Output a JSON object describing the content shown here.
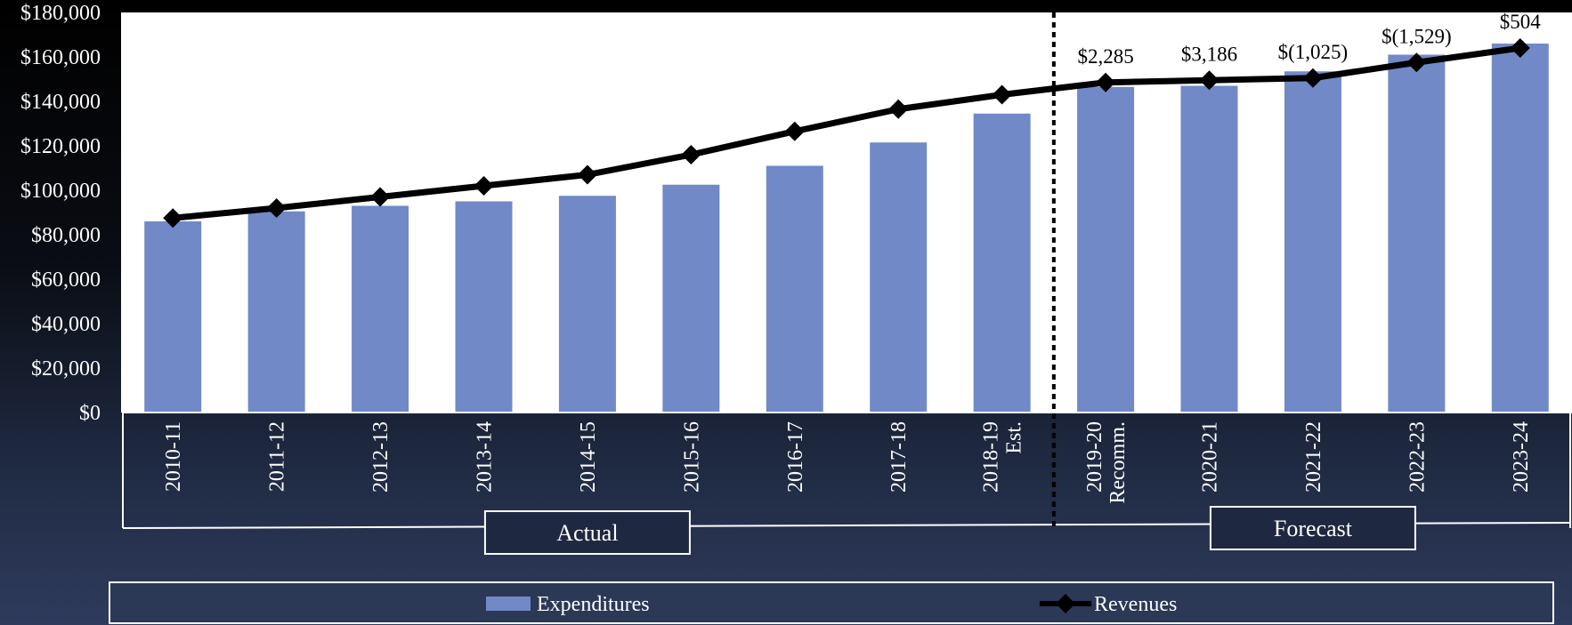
{
  "chart_data": {
    "type": "bar",
    "categories": [
      "2010-11",
      "2011-12",
      "2012-13",
      "2013-14",
      "2014-15",
      "2015-16",
      "2016-17",
      "2017-18",
      "2018-19 Est.",
      "2019-20 Recomm.",
      "2020-21",
      "2021-22",
      "2022-23",
      "2023-24"
    ],
    "category_lines": [
      [
        "2010-11"
      ],
      [
        "2011-12"
      ],
      [
        "2012-13"
      ],
      [
        "2013-14"
      ],
      [
        "2014-15"
      ],
      [
        "2015-16"
      ],
      [
        "2016-17"
      ],
      [
        "2017-18"
      ],
      [
        "2018-19",
        "Est."
      ],
      [
        "2019-20",
        "Recomm."
      ],
      [
        "2020-21"
      ],
      [
        "2021-22"
      ],
      [
        "2022-23"
      ],
      [
        "2023-24"
      ]
    ],
    "series": [
      {
        "name": "Expenditures",
        "kind": "bar",
        "values": [
          86000,
          90500,
          93000,
          95000,
          97500,
          102500,
          111000,
          121500,
          134500,
          146500,
          147000,
          153500,
          161000,
          166000
        ]
      },
      {
        "name": "Revenues",
        "kind": "line",
        "values": [
          87500,
          92000,
          97000,
          102000,
          107000,
          116000,
          126500,
          136500,
          143000,
          148500,
          149500,
          150500,
          157500,
          164000
        ]
      }
    ],
    "data_labels": [
      {
        "index": 9,
        "text": "$2,285"
      },
      {
        "index": 10,
        "text": "$3,186"
      },
      {
        "index": 11,
        "text": "$(1,025)"
      },
      {
        "index": 12,
        "text": "$(1,529)"
      },
      {
        "index": 13,
        "text": "$504"
      }
    ],
    "y_ticks": [
      "$0",
      "$20,000",
      "$40,000",
      "$60,000",
      "$80,000",
      "$100,000",
      "$120,000",
      "$140,000",
      "$160,000",
      "$180,000"
    ],
    "ylim": [
      0,
      180000
    ],
    "groups": [
      {
        "label": "Actual",
        "from": 0,
        "to": 8
      },
      {
        "label": "Forecast",
        "from": 9,
        "to": 13
      }
    ],
    "title": "",
    "xlabel": "",
    "ylabel": "",
    "grid": false,
    "legend_position": "bottom",
    "colors": {
      "bar": "#7189c6",
      "line": "#000000",
      "plot_background": "#ffffff",
      "text_light": "#ffffff",
      "text_dark": "#000000"
    }
  }
}
